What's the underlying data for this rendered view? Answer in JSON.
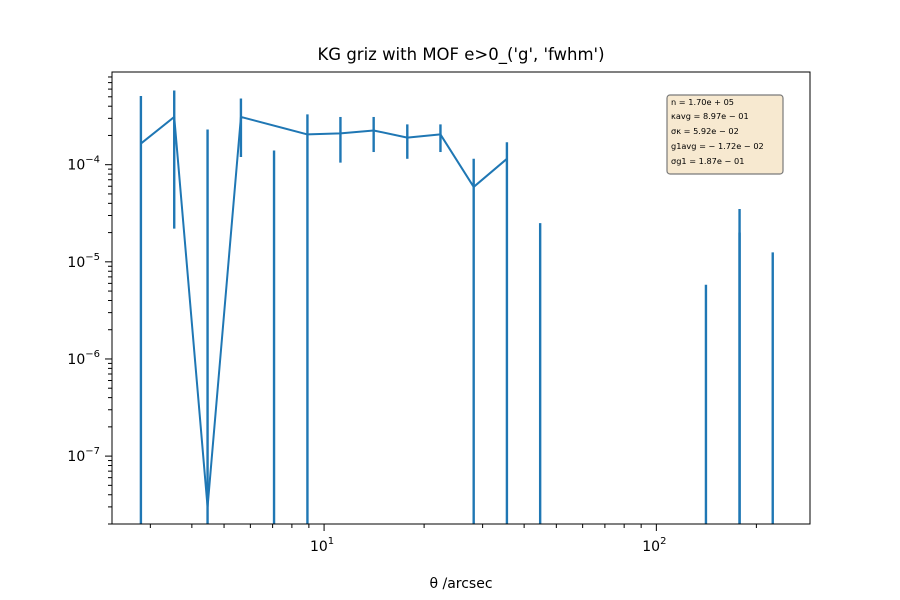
{
  "colors": {
    "series": "#1f77b4",
    "axes": "#000000",
    "stats_box_fill": "#f7e9d0",
    "stats_box_edge": "#7a7a7a"
  },
  "chart_data": {
    "type": "line",
    "title": "KG griz with MOF e>0_('g', 'fwhm')",
    "xlabel": "θ /arcsec",
    "ylabel": "",
    "xscale": "log",
    "yscale": "log",
    "xlim": [
      2.3,
      290
    ],
    "ylim": [
      2e-08,
      0.0009
    ],
    "grid": false,
    "x_ticks": [
      {
        "value": 10,
        "base": "10",
        "exp": "1"
      },
      {
        "value": 100,
        "base": "10",
        "exp": "2"
      }
    ],
    "y_ticks": [
      {
        "value": 1e-07,
        "base": "10",
        "exp": "−7"
      },
      {
        "value": 1e-06,
        "base": "10",
        "exp": "−6"
      },
      {
        "value": 1e-05,
        "base": "10",
        "exp": "−5"
      },
      {
        "value": 0.0001,
        "base": "10",
        "exp": "−4"
      }
    ],
    "series": [
      {
        "points": [
          {
            "x": 2.81,
            "y": 0.000165,
            "err_lo": 2e-08,
            "err_hi": 0.00051
          },
          {
            "x": 3.54,
            "y": 0.00031,
            "err_lo": 2.2e-05,
            "err_hi": 0.00058
          },
          {
            "x": 4.46,
            "y": 3e-08,
            "err_lo": 2e-08,
            "err_hi": 0.00023
          },
          {
            "x": 5.62,
            "y": 0.00031,
            "err_lo": 0.00012,
            "err_hi": 0.00048
          },
          {
            "x": 7.07,
            "y": null,
            "err_lo": 2e-08,
            "err_hi": 0.00014
          },
          {
            "x": 8.91,
            "y": 0.000205,
            "err_lo": 2e-08,
            "err_hi": 0.00033
          },
          {
            "x": 11.2,
            "y": 0.00021,
            "err_lo": 0.000105,
            "err_hi": 0.00031
          },
          {
            "x": 14.1,
            "y": 0.000225,
            "err_lo": 0.000135,
            "err_hi": 0.00031
          },
          {
            "x": 17.8,
            "y": 0.00019,
            "err_lo": 0.000115,
            "err_hi": 0.00026
          },
          {
            "x": 22.4,
            "y": 0.000205,
            "err_lo": 0.000135,
            "err_hi": 0.00026
          },
          {
            "x": 28.2,
            "y": 5.9e-05,
            "err_lo": 2e-08,
            "err_hi": 0.000115
          },
          {
            "x": 35.5,
            "y": 0.000115,
            "err_lo": 2e-08,
            "err_hi": 0.00017
          },
          {
            "x": 44.7,
            "y": null,
            "err_lo": 2e-08,
            "err_hi": 2.5e-05
          },
          {
            "x": 141,
            "y": null,
            "err_lo": 2e-08,
            "err_hi": 5.8e-06
          },
          {
            "x": 178,
            "y": null,
            "err_lo": 2e-08,
            "err_hi": 3.5e-05
          },
          {
            "x": 178,
            "y": null,
            "err_lo": 2e-08,
            "err_hi": 2e-05
          },
          {
            "x": 224,
            "y": null,
            "err_lo": 2e-08,
            "err_hi": 1.25e-05
          }
        ]
      }
    ],
    "stats_box": {
      "placement": "top-right",
      "lines": [
        "n = 1.70e + 05",
        "κavg = 8.97e − 01",
        "σκ = 5.92e − 02",
        "g1avg = − 1.72e − 02",
        "σg1 = 1.87e − 01"
      ]
    }
  }
}
